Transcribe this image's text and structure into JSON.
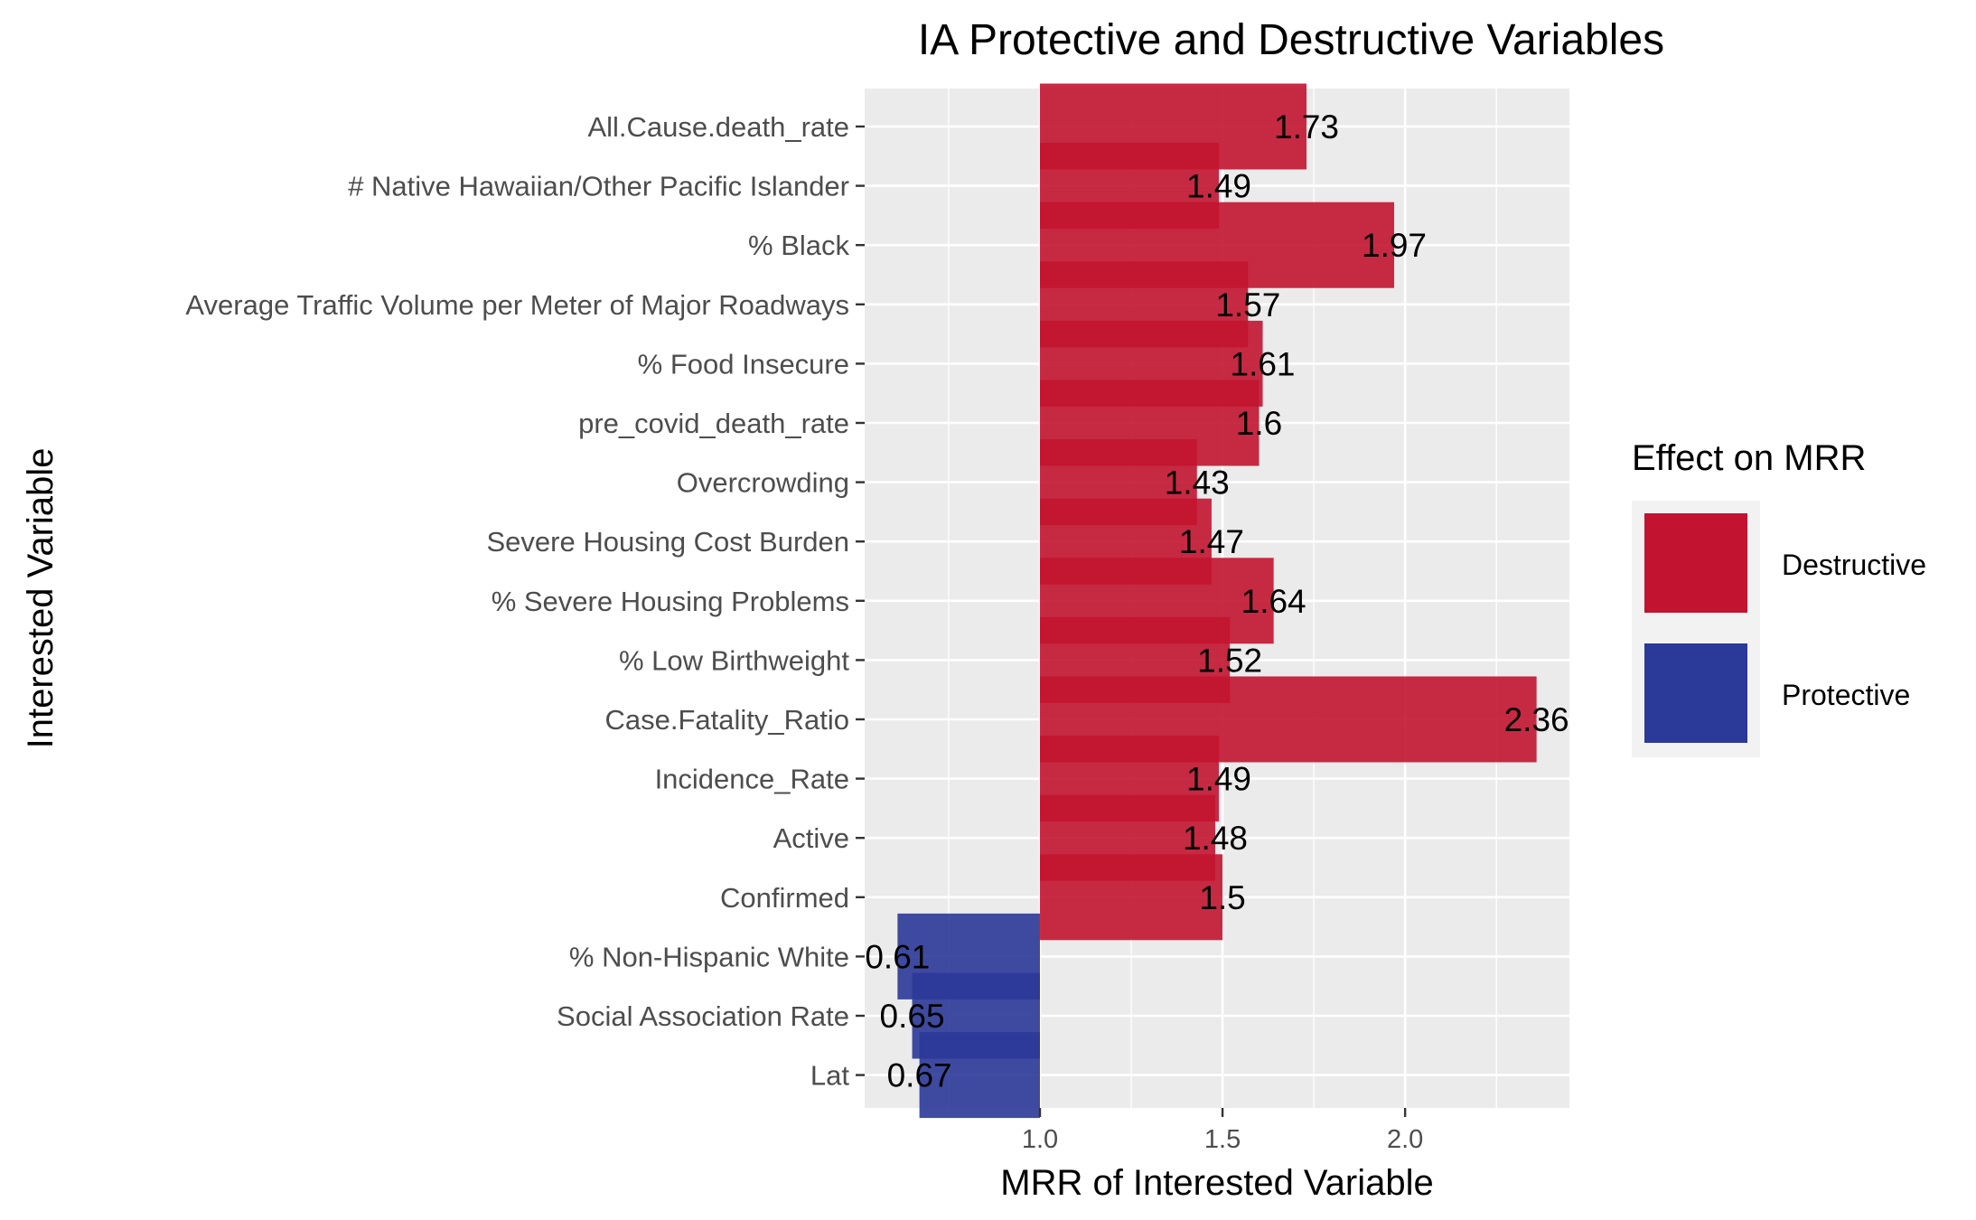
{
  "chart_data": {
    "type": "bar",
    "orientation": "horizontal",
    "title": "IA Protective and Destructive Variables",
    "xlabel": "MRR of Interested Variable",
    "ylabel": "Interested Variable",
    "xlim": [
      0.52,
      2.45
    ],
    "xticks": [
      1.0,
      1.5,
      2.0
    ],
    "xtick_labels": [
      "1.0",
      "1.5",
      "2.0"
    ],
    "baseline": 1.0,
    "grid": true,
    "legend": {
      "title": "Effect on MRR",
      "placement": "right",
      "entries": [
        {
          "label": "Destructive",
          "color": "#C21430"
        },
        {
          "label": "Protective",
          "color": "#2B3998"
        }
      ]
    },
    "colors": {
      "Destructive": "#C21430",
      "Protective": "#2B3998",
      "panel": "#EBEBEB",
      "grid": "#FFFFFF"
    },
    "categories": [
      "All.Cause.death_rate",
      "# Native Hawaiian/Other Pacific Islander",
      "% Black",
      "Average Traffic Volume per Meter of Major Roadways",
      "% Food Insecure",
      "pre_covid_death_rate",
      "Overcrowding",
      "Severe Housing Cost Burden",
      "% Severe Housing Problems",
      "% Low Birthweight",
      "Case.Fatality_Ratio",
      "Incidence_Rate",
      "Active",
      "Confirmed",
      "% Non-Hispanic White",
      "Social Association Rate",
      "Lat"
    ],
    "values": [
      1.73,
      1.49,
      1.97,
      1.57,
      1.61,
      1.6,
      1.43,
      1.47,
      1.64,
      1.52,
      2.36,
      1.49,
      1.48,
      1.5,
      0.61,
      0.65,
      0.67
    ],
    "value_labels": [
      "1.73",
      "1.49",
      "1.97",
      "1.57",
      "1.61",
      "1.6",
      "1.43",
      "1.47",
      "1.64",
      "1.52",
      "2.36",
      "1.49",
      "1.48",
      "1.5",
      "0.61",
      "0.65",
      "0.67"
    ],
    "effects": [
      "Destructive",
      "Destructive",
      "Destructive",
      "Destructive",
      "Destructive",
      "Destructive",
      "Destructive",
      "Destructive",
      "Destructive",
      "Destructive",
      "Destructive",
      "Destructive",
      "Destructive",
      "Destructive",
      "Protective",
      "Protective",
      "Protective"
    ]
  }
}
